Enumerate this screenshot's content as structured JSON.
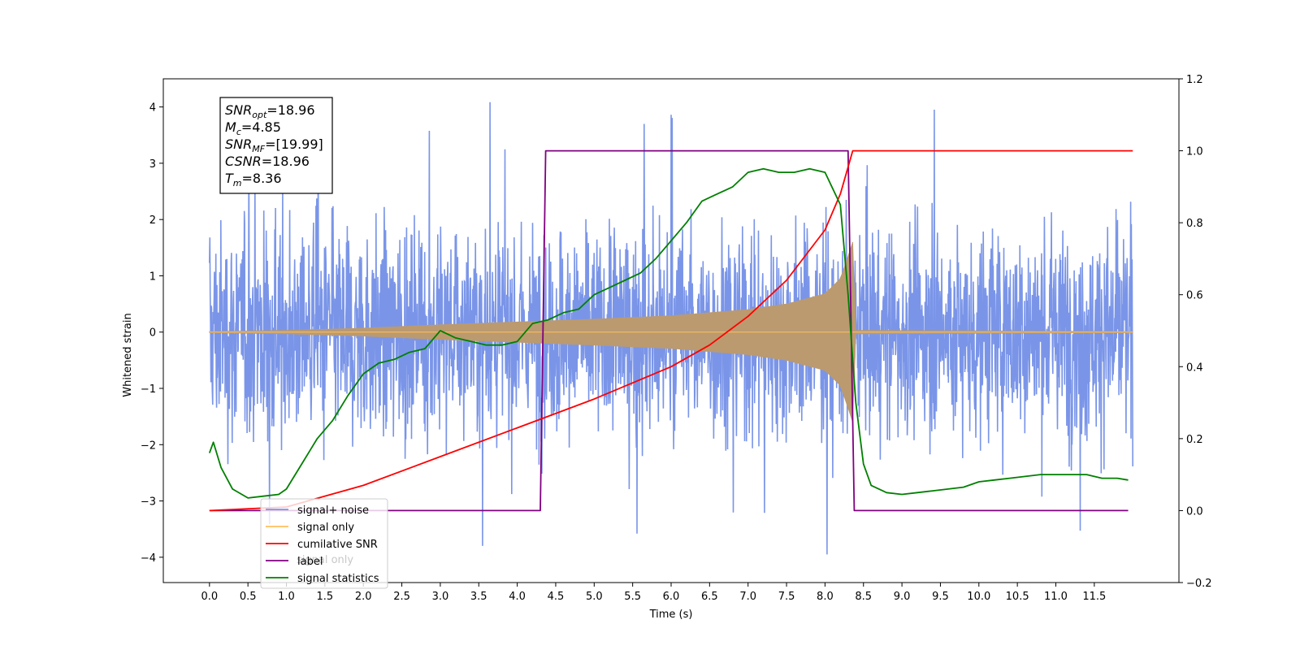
{
  "chart_data": {
    "type": "line",
    "xlabel": "Time (s)",
    "ylabel": "Whitened strain",
    "xlim": [
      -0.6,
      12.6
    ],
    "ylim_left": [
      -4.45,
      4.5
    ],
    "ylim_right": [
      -0.2,
      1.2
    ],
    "x_ticks": [
      "0.0",
      "0.5",
      "1.0",
      "1.5",
      "2.0",
      "2.5",
      "3.0",
      "3.5",
      "4.0",
      "4.5",
      "5.0",
      "5.5",
      "6.0",
      "6.5",
      "7.0",
      "7.5",
      "8.0",
      "8.5",
      "9.0",
      "9.5",
      "10.0",
      "10.5",
      "11.0",
      "11.5"
    ],
    "y_ticks_left": [
      "−4",
      "−3",
      "−2",
      "−1",
      "0",
      "1",
      "2",
      "3",
      "4"
    ],
    "y_ticks_right": [
      "−0.2",
      "0.0",
      "0.2",
      "0.4",
      "0.6",
      "0.8",
      "1.0",
      "1.2"
    ],
    "legend_position": "lower-left",
    "colors": {
      "signal_noise": "#7a95e8",
      "signal_only": "#bb9a6f",
      "signal_only_legend": "#ffbf5f",
      "cumulative_snr": "#ff0000",
      "label": "#800080",
      "signal_statistics": "#008000"
    },
    "series": [
      {
        "name": "signal+ noise",
        "axis": "left",
        "noise_envelope": {
          "typical_amplitude": 2.4,
          "max": 4.1,
          "min": -3.95
        }
      },
      {
        "name": "signal only",
        "axis": "left",
        "envelope": {
          "x": [
            0.0,
            1.0,
            2.0,
            3.0,
            4.0,
            5.0,
            6.0,
            7.0,
            7.5,
            8.0,
            8.2,
            8.3,
            8.36,
            8.4,
            12.0
          ],
          "amplitude": [
            0.01,
            0.03,
            0.07,
            0.13,
            0.18,
            0.23,
            0.29,
            0.4,
            0.5,
            0.68,
            0.95,
            1.35,
            1.6,
            0.03,
            0.01
          ]
        }
      },
      {
        "name": "cumilative SNR",
        "axis": "right",
        "x": [
          0.0,
          1.0,
          2.0,
          3.0,
          4.0,
          4.5,
          5.0,
          5.5,
          6.0,
          6.5,
          7.0,
          7.5,
          8.0,
          8.2,
          8.36,
          12.0
        ],
        "y": [
          0.0,
          0.01,
          0.07,
          0.15,
          0.23,
          0.27,
          0.31,
          0.355,
          0.4,
          0.46,
          0.54,
          0.64,
          0.78,
          0.88,
          1.0,
          1.0
        ]
      },
      {
        "name": "label",
        "axis": "right",
        "x": [
          0.0,
          4.3,
          4.37,
          8.3,
          8.38,
          11.94
        ],
        "y": [
          0.0,
          0.0,
          1.0,
          1.0,
          0.0,
          0.0
        ]
      },
      {
        "name": "signal statistics",
        "axis": "right",
        "x": [
          0.0,
          0.05,
          0.15,
          0.3,
          0.5,
          0.7,
          0.9,
          1.0,
          1.2,
          1.4,
          1.6,
          1.8,
          2.0,
          2.2,
          2.4,
          2.6,
          2.8,
          3.0,
          3.1,
          3.2,
          3.4,
          3.6,
          3.8,
          4.0,
          4.2,
          4.4,
          4.6,
          4.8,
          5.0,
          5.2,
          5.4,
          5.6,
          5.8,
          6.0,
          6.2,
          6.4,
          6.6,
          6.8,
          7.0,
          7.2,
          7.4,
          7.6,
          7.8,
          8.0,
          8.2,
          8.3,
          8.4,
          8.5,
          8.6,
          8.8,
          9.0,
          9.2,
          9.4,
          9.6,
          9.8,
          10.0,
          10.2,
          10.4,
          10.6,
          10.8,
          11.0,
          11.2,
          11.4,
          11.6,
          11.8,
          11.94
        ],
        "y": [
          0.16,
          0.19,
          0.12,
          0.06,
          0.035,
          0.04,
          0.045,
          0.06,
          0.13,
          0.2,
          0.25,
          0.32,
          0.38,
          0.41,
          0.42,
          0.44,
          0.45,
          0.5,
          0.49,
          0.48,
          0.47,
          0.46,
          0.46,
          0.47,
          0.52,
          0.53,
          0.55,
          0.56,
          0.6,
          0.62,
          0.64,
          0.66,
          0.7,
          0.75,
          0.8,
          0.86,
          0.88,
          0.9,
          0.94,
          0.95,
          0.94,
          0.94,
          0.95,
          0.94,
          0.85,
          0.6,
          0.3,
          0.13,
          0.07,
          0.05,
          0.045,
          0.05,
          0.055,
          0.06,
          0.065,
          0.08,
          0.085,
          0.09,
          0.095,
          0.1,
          0.1,
          0.1,
          0.1,
          0.09,
          0.09,
          0.085
        ]
      }
    ],
    "annotation": {
      "lines": [
        {
          "main": "SNR",
          "sub": "opt",
          "value": "=18.96"
        },
        {
          "main": "M",
          "sub": "c",
          "value": "=4.85"
        },
        {
          "main": "SNR",
          "sub": "MF",
          "value": "=[19.99]"
        },
        {
          "main": "CSNR",
          "sub": "",
          "value": "=18.96"
        },
        {
          "main": "T",
          "sub": "m",
          "value": "=8.36"
        }
      ]
    },
    "legend": {
      "entries": [
        "signal+ noise",
        "signal only",
        "cumilative SNR",
        "label",
        "signal statistics"
      ],
      "ghost_entries": [
        "signal only"
      ]
    }
  }
}
